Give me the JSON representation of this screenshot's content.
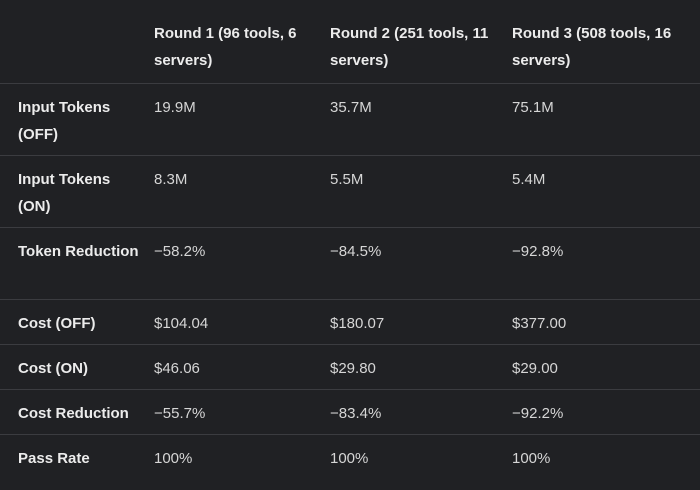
{
  "table": {
    "columns": [
      "Round 1 (96 tools, 6 servers)",
      "Round 2 (251 tools, 11 servers)",
      "Round 3 (508 tools, 16 servers)"
    ],
    "rows": [
      {
        "label": "Input Tokens (OFF)",
        "values": [
          "19.9M",
          "35.7M",
          "75.1M"
        ]
      },
      {
        "label": "Input Tokens (ON)",
        "values": [
          "8.3M",
          "5.5M",
          "5.4M"
        ]
      },
      {
        "label": "Token Reduction",
        "values": [
          "−58.2%",
          "−84.5%",
          "−92.8%"
        ]
      },
      {
        "label": "Cost (OFF)",
        "values": [
          "$104.04",
          "$180.07",
          "$377.00"
        ]
      },
      {
        "label": "Cost (ON)",
        "values": [
          "$46.06",
          "$29.80",
          "$29.00"
        ]
      },
      {
        "label": "Cost Reduction",
        "values": [
          "−55.7%",
          "−83.4%",
          "−92.2%"
        ]
      },
      {
        "label": "Pass Rate",
        "values": [
          "100%",
          "100%",
          "100%"
        ]
      }
    ]
  }
}
